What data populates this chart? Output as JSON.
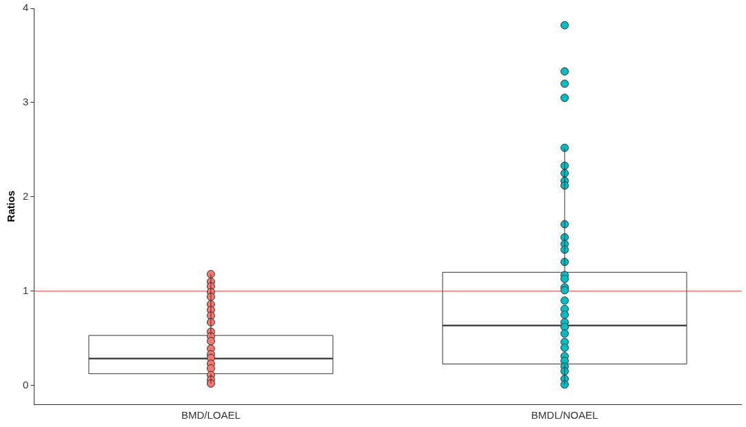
{
  "chart_data": {
    "type": "box",
    "ylabel": "Ratios",
    "categories": [
      "BMD/LOAEL",
      "BMDL/NOAEL"
    ],
    "boxes": [
      {
        "low": 0.02,
        "q1": 0.124,
        "median": 0.285,
        "q3": 0.53,
        "high": 1.18
      },
      {
        "low": 0.01,
        "q1": 0.227,
        "median": 0.636,
        "q3": 1.2,
        "high": 2.52
      }
    ],
    "series": [
      {
        "type": "scatter",
        "color": "#f8766d",
        "x": [
          "BMD/LOAEL",
          "BMD/LOAEL",
          "BMD/LOAEL",
          "BMD/LOAEL",
          "BMD/LOAEL",
          "BMD/LOAEL",
          "BMD/LOAEL",
          "BMD/LOAEL",
          "BMD/LOAEL",
          "BMD/LOAEL",
          "BMD/LOAEL",
          "BMD/LOAEL",
          "BMD/LOAEL",
          "BMD/LOAEL",
          "BMD/LOAEL",
          "BMD/LOAEL",
          "BMD/LOAEL",
          "BMD/LOAEL",
          "BMD/LOAEL",
          "BMD/LOAEL"
        ],
        "values": [
          1.18,
          1.1,
          1.05,
          0.99,
          0.94,
          0.86,
          0.8,
          0.74,
          0.67,
          0.57,
          0.52,
          0.47,
          0.39,
          0.33,
          0.29,
          0.23,
          0.18,
          0.11,
          0.06,
          0.02
        ]
      },
      {
        "type": "scatter",
        "color": "#00bfc4",
        "x": [
          "BMDL/NOAEL",
          "BMDL/NOAEL",
          "BMDL/NOAEL",
          "BMDL/NOAEL",
          "BMDL/NOAEL",
          "BMDL/NOAEL",
          "BMDL/NOAEL",
          "BMDL/NOAEL",
          "BMDL/NOAEL",
          "BMDL/NOAEL",
          "BMDL/NOAEL",
          "BMDL/NOAEL",
          "BMDL/NOAEL",
          "BMDL/NOAEL",
          "BMDL/NOAEL",
          "BMDL/NOAEL",
          "BMDL/NOAEL",
          "BMDL/NOAEL",
          "BMDL/NOAEL",
          "BMDL/NOAEL",
          "BMDL/NOAEL",
          "BMDL/NOAEL",
          "BMDL/NOAEL",
          "BMDL/NOAEL",
          "BMDL/NOAEL",
          "BMDL/NOAEL",
          "BMDL/NOAEL",
          "BMDL/NOAEL",
          "BMDL/NOAEL",
          "BMDL/NOAEL",
          "BMDL/NOAEL",
          "BMDL/NOAEL"
        ],
        "values": [
          3.82,
          3.33,
          3.2,
          3.05,
          2.52,
          2.33,
          2.25,
          2.17,
          2.12,
          1.71,
          1.57,
          1.5,
          1.44,
          1.31,
          1.17,
          1.13,
          1.04,
          1.01,
          0.9,
          0.81,
          0.75,
          0.67,
          0.62,
          0.55,
          0.46,
          0.4,
          0.31,
          0.26,
          0.2,
          0.15,
          0.07,
          0.01
        ]
      }
    ],
    "ylim": [
      -0.2,
      4
    ],
    "yticks": [
      0,
      1,
      2,
      3,
      4
    ],
    "grid": false,
    "legend": false,
    "marker": "circle",
    "ref_lines": [
      {
        "axis": "y",
        "value": 1,
        "color": "#ff0000"
      }
    ]
  }
}
